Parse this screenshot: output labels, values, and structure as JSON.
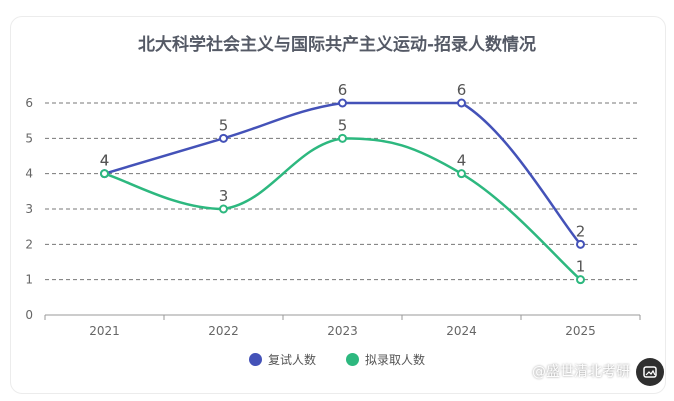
{
  "chart_data": {
    "type": "line",
    "title": "北大科学社会主义与国际共产主义运动-招录人数情况",
    "categories": [
      "2021",
      "2022",
      "2023",
      "2024",
      "2025"
    ],
    "series": [
      {
        "name": "复试人数",
        "values": [
          4,
          5,
          6,
          6,
          2
        ],
        "color": "#4452b8"
      },
      {
        "name": "拟录取人数",
        "values": [
          4,
          3,
          5,
          4,
          1
        ],
        "color": "#2db87f"
      }
    ],
    "yticks": [
      "0",
      "1",
      "2",
      "3",
      "4",
      "5",
      "6"
    ],
    "ylim": [
      0,
      6
    ],
    "grid": true,
    "legend_position": "bottom"
  },
  "watermark": "@盛世清北考研",
  "corner_icon": "image-icon"
}
